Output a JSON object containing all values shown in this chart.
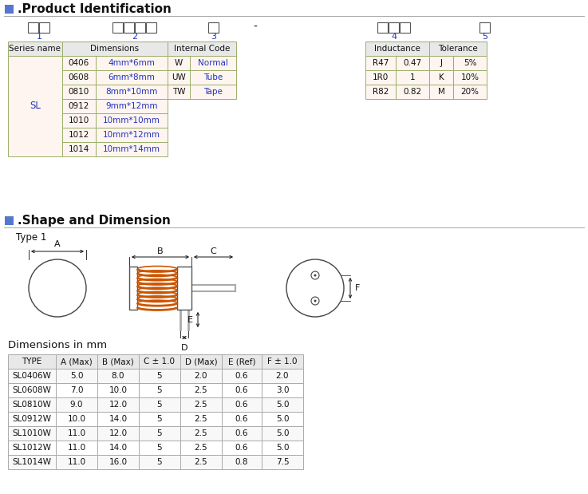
{
  "bg_color": "#ffffff",
  "hdr_bg": "#e8e8e8",
  "cell_bg": "#fff5f0",
  "border_color": "#9aaf6a",
  "dim_border": "#aaaaaa",
  "blue": "#2233bb",
  "black": "#111111",
  "orange": "#cc5500",
  "gray": "#888888",
  "dim_codes": [
    "0406",
    "0608",
    "0810",
    "0912",
    "1010",
    "1012",
    "1014"
  ],
  "dim_vals": [
    "4mm*6mm",
    "6mm*8mm",
    "8mm*10mm",
    "9mm*12mm",
    "10mm*10mm",
    "10mm*12mm",
    "10mm*14mm"
  ],
  "ic_codes": [
    "W",
    "UW",
    "TW"
  ],
  "ic_vals": [
    "Normal",
    "Tube",
    "Tape"
  ],
  "ind_data": [
    [
      "R47",
      "0.47",
      "J",
      "5%"
    ],
    [
      "1R0",
      "1",
      "K",
      "10%"
    ],
    [
      "R82",
      "0.82",
      "M",
      "20%"
    ]
  ],
  "dim_headers": [
    "TYPE",
    "A (Max)",
    "B (Max)",
    "C ± 1.0",
    "D (Max)",
    "E (Ref)",
    "F ± 1.0"
  ],
  "dim_data": [
    [
      "SL0406W",
      "5.0",
      "8.0",
      "5",
      "2.0",
      "0.6",
      "2.0"
    ],
    [
      "SL0608W",
      "7.0",
      "10.0",
      "5",
      "2.5",
      "0.6",
      "3.0"
    ],
    [
      "SL0810W",
      "9.0",
      "12.0",
      "5",
      "2.5",
      "0.6",
      "5.0"
    ],
    [
      "SL0912W",
      "10.0",
      "14.0",
      "5",
      "2.5",
      "0.6",
      "5.0"
    ],
    [
      "SL1010W",
      "11.0",
      "12.0",
      "5",
      "2.5",
      "0.6",
      "5.0"
    ],
    [
      "SL1012W",
      "11.0",
      "14.0",
      "5",
      "2.5",
      "0.6",
      "5.0"
    ],
    [
      "SL1014W",
      "11.0",
      "16.0",
      "5",
      "2.5",
      "0.8",
      "7.5"
    ]
  ]
}
